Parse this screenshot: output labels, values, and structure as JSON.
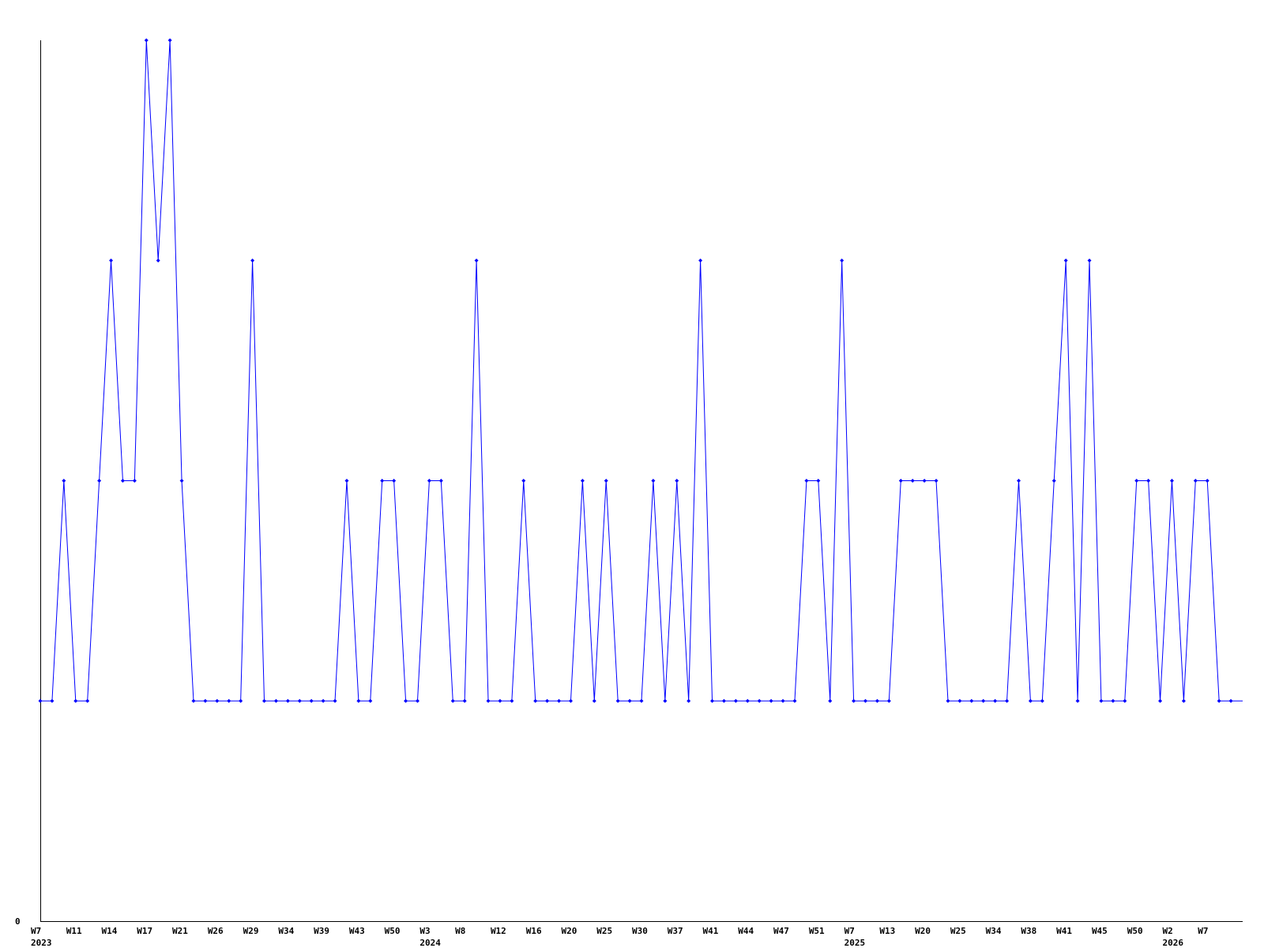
{
  "chart_data": {
    "type": "line",
    "title": "",
    "xlabel": "",
    "ylabel": "",
    "ylim": [
      0,
      4
    ],
    "y_tick_labels": [
      "0"
    ],
    "grid": false,
    "line_color": "#0000ff",
    "axis_color": "#000000",
    "values": [
      1,
      1,
      2,
      1,
      1,
      2,
      3,
      2,
      2,
      4,
      3,
      4,
      2,
      1,
      1,
      1,
      1,
      1,
      3,
      1,
      1,
      1,
      1,
      1,
      1,
      1,
      2,
      1,
      1,
      2,
      2,
      1,
      1,
      2,
      2,
      1,
      1,
      3,
      1,
      1,
      1,
      2,
      1,
      1,
      1,
      1,
      2,
      1,
      2,
      1,
      1,
      1,
      2,
      1,
      2,
      1,
      3,
      1,
      1,
      1,
      1,
      1,
      1,
      1,
      1,
      2,
      2,
      1,
      3,
      1,
      1,
      1,
      1,
      2,
      2,
      2,
      2,
      1,
      1,
      1,
      1,
      1,
      1,
      2,
      1,
      1,
      2,
      3,
      1,
      3,
      1,
      1,
      1,
      2,
      2,
      1,
      2,
      1,
      2,
      2,
      1,
      1
    ],
    "x_ticks": [
      {
        "index": 0,
        "label": "W7",
        "year": "2023"
      },
      {
        "index": 3,
        "label": "W11"
      },
      {
        "index": 6,
        "label": "W14"
      },
      {
        "index": 9,
        "label": "W17"
      },
      {
        "index": 12,
        "label": "W21"
      },
      {
        "index": 15,
        "label": "W26"
      },
      {
        "index": 18,
        "label": "W29"
      },
      {
        "index": 21,
        "label": "W34"
      },
      {
        "index": 24,
        "label": "W39"
      },
      {
        "index": 27,
        "label": "W43"
      },
      {
        "index": 30,
        "label": "W50"
      },
      {
        "index": 33,
        "label": "W3",
        "year": "2024"
      },
      {
        "index": 36,
        "label": "W8"
      },
      {
        "index": 39,
        "label": "W12"
      },
      {
        "index": 42,
        "label": "W16"
      },
      {
        "index": 45,
        "label": "W20"
      },
      {
        "index": 48,
        "label": "W25"
      },
      {
        "index": 51,
        "label": "W30"
      },
      {
        "index": 54,
        "label": "W37"
      },
      {
        "index": 57,
        "label": "W41"
      },
      {
        "index": 60,
        "label": "W44"
      },
      {
        "index": 63,
        "label": "W47"
      },
      {
        "index": 66,
        "label": "W51"
      },
      {
        "index": 69,
        "label": "W7",
        "year": "2025"
      },
      {
        "index": 72,
        "label": "W13"
      },
      {
        "index": 75,
        "label": "W20"
      },
      {
        "index": 78,
        "label": "W25"
      },
      {
        "index": 81,
        "label": "W34"
      },
      {
        "index": 84,
        "label": "W38"
      },
      {
        "index": 87,
        "label": "W41"
      },
      {
        "index": 90,
        "label": "W45"
      },
      {
        "index": 93,
        "label": "W50"
      },
      {
        "index": 96,
        "label": "W2",
        "year": "2026"
      },
      {
        "index": 99,
        "label": "W7"
      }
    ]
  }
}
